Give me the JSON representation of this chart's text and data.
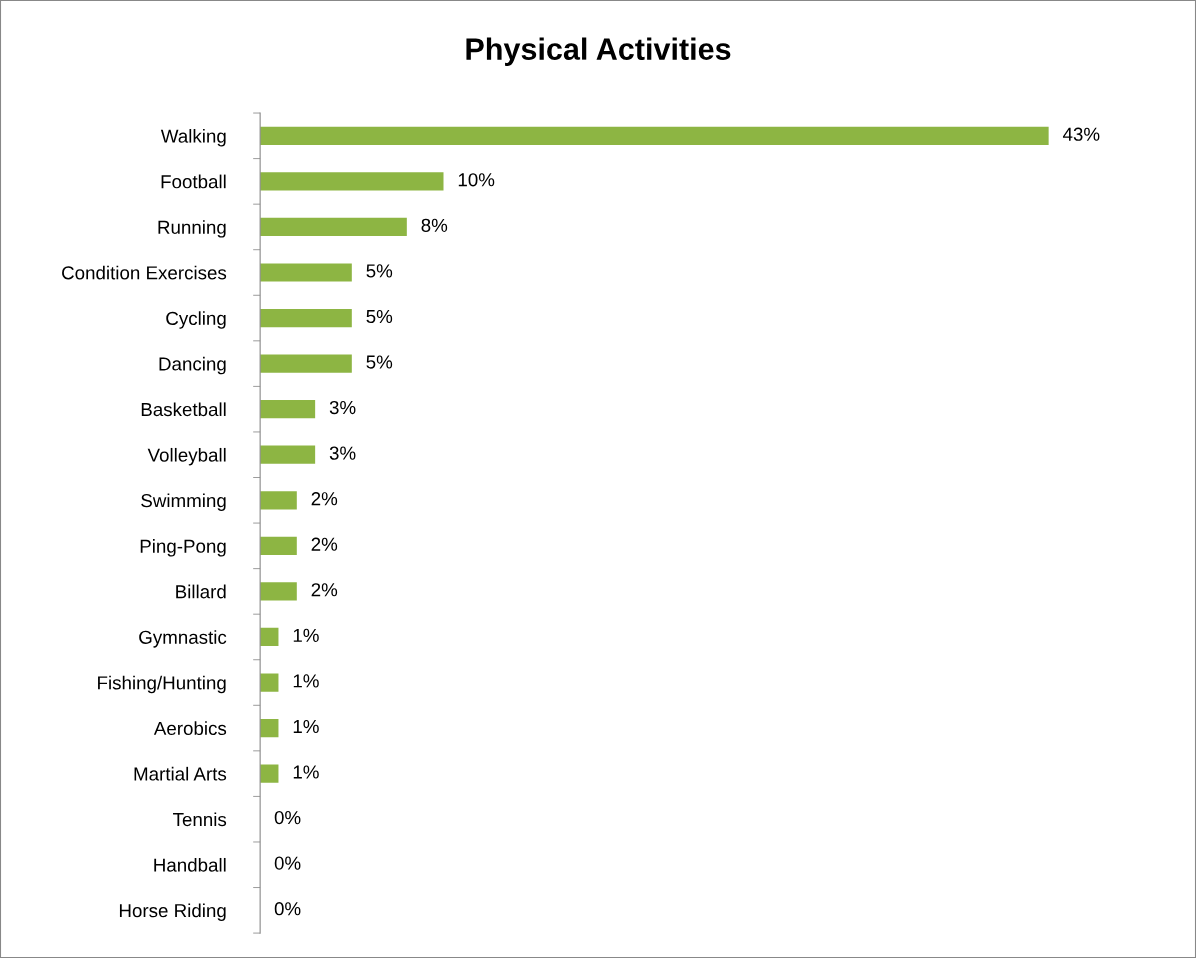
{
  "chart_data": {
    "type": "bar",
    "orientation": "horizontal",
    "title": "Physical Activities",
    "categories": [
      "Walking",
      "Football",
      "Running",
      "Condition Exercises",
      "Cycling",
      "Dancing",
      "Basketball",
      "Volleyball",
      "Swimming",
      "Ping-Pong",
      "Billard",
      "Gymnastic",
      "Fishing/Hunting",
      "Aerobics",
      "Martial Arts",
      "Tennis",
      "Handball",
      "Horse Riding"
    ],
    "values": [
      43,
      10,
      8,
      5,
      5,
      5,
      3,
      3,
      2,
      2,
      2,
      1,
      1,
      1,
      1,
      0,
      0,
      0
    ],
    "value_labels": [
      "43%",
      "10%",
      "8%",
      "5%",
      "5%",
      "5%",
      "3%",
      "3%",
      "2%",
      "2%",
      "2%",
      "1%",
      "1%",
      "1%",
      "1%",
      "0%",
      "0%",
      "0%"
    ],
    "color": "#8db543",
    "grid": false,
    "legend": false,
    "tick_labels": "y"
  }
}
